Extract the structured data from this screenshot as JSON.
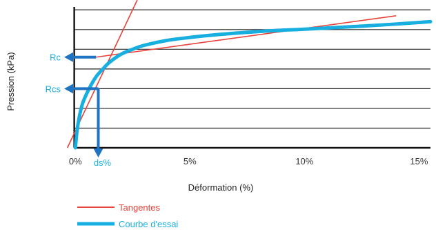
{
  "chart_data": {
    "type": "line",
    "title": "",
    "xlabel": "Déformation (%)",
    "ylabel": "Pression (kPa)",
    "x_tick_labels": [
      "0%",
      "5%",
      "10%",
      "15%"
    ],
    "x_ticks": [
      0,
      5,
      10,
      15
    ],
    "xlim": [
      -0.4,
      15.5
    ],
    "ylim": [
      0,
      7.5
    ],
    "grid": true,
    "legend_position": "bottom-left",
    "series": [
      {
        "name": "Tangentes",
        "style": "line",
        "color": "#e8423a",
        "segments": [
          [
            [
              -0.35,
              0.0
            ],
            [
              2.7,
              7.5
            ]
          ],
          [
            [
              0.9,
              4.6
            ],
            [
              14.0,
              6.7
            ]
          ]
        ]
      },
      {
        "name": "Courbe d'essai",
        "style": "curve",
        "color": "#17aee0",
        "points": [
          [
            0.0,
            0.0
          ],
          [
            0.1,
            1.1
          ],
          [
            0.3,
            2.2
          ],
          [
            0.6,
            3.0
          ],
          [
            0.9,
            3.6
          ],
          [
            1.2,
            4.0
          ],
          [
            1.5,
            4.35
          ],
          [
            2.0,
            4.75
          ],
          [
            2.5,
            5.0
          ],
          [
            3.0,
            5.2
          ],
          [
            4.0,
            5.45
          ],
          [
            5.0,
            5.6
          ],
          [
            6.0,
            5.72
          ],
          [
            8.0,
            5.9
          ],
          [
            10.0,
            6.02
          ],
          [
            12.0,
            6.14
          ],
          [
            14.0,
            6.28
          ],
          [
            15.5,
            6.4
          ]
        ]
      }
    ],
    "annotations": [
      {
        "label": "Rc",
        "color": "#17aee0",
        "type": "arrow-left",
        "x": 0.9,
        "y": 4.6
      },
      {
        "label": "Rcs",
        "color": "#17aee0",
        "type": "arrow-left",
        "x": 1.0,
        "y": 3.0
      },
      {
        "label": "ds%",
        "color": "#17aee0",
        "type": "arrow-down",
        "x": 1.0,
        "y": 3.0
      }
    ],
    "colors": {
      "grid": "#222222",
      "arrow": "#1f74c2"
    }
  }
}
